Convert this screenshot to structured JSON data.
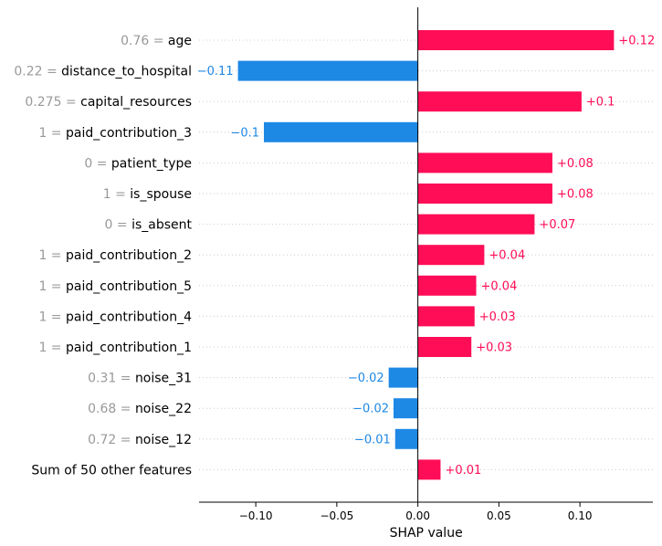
{
  "chart_data": {
    "type": "bar",
    "orientation": "horizontal",
    "xlabel": "SHAP value",
    "xlim": [
      -0.135,
      0.145
    ],
    "xticks": [
      -0.1,
      -0.05,
      0.0,
      0.05,
      0.1
    ],
    "xtick_labels": [
      "−0.10",
      "−0.05",
      "0.00",
      "0.05",
      "0.10"
    ],
    "grid": false,
    "colors": {
      "positive": "#ff0d57",
      "negative": "#1e88e5",
      "value_label": "#999999",
      "axis": "#000000",
      "gridline": "#cccccc"
    },
    "rows": [
      {
        "value_text": "0.76",
        "feature": "age",
        "shap": 0.121,
        "label": "+0.12"
      },
      {
        "value_text": "0.22",
        "feature": "distance_to_hospital",
        "shap": -0.111,
        "label": "−0.11"
      },
      {
        "value_text": "0.275",
        "feature": "capital_resources",
        "shap": 0.101,
        "label": "+0.1"
      },
      {
        "value_text": "1",
        "feature": "paid_contribution_3",
        "shap": -0.095,
        "label": "−0.1"
      },
      {
        "value_text": "0",
        "feature": "patient_type",
        "shap": 0.083,
        "label": "+0.08"
      },
      {
        "value_text": "1",
        "feature": "is_spouse",
        "shap": 0.083,
        "label": "+0.08"
      },
      {
        "value_text": "0",
        "feature": "is_absent",
        "shap": 0.072,
        "label": "+0.07"
      },
      {
        "value_text": "1",
        "feature": "paid_contribution_2",
        "shap": 0.041,
        "label": "+0.04"
      },
      {
        "value_text": "1",
        "feature": "paid_contribution_5",
        "shap": 0.036,
        "label": "+0.04"
      },
      {
        "value_text": "1",
        "feature": "paid_contribution_4",
        "shap": 0.035,
        "label": "+0.03"
      },
      {
        "value_text": "1",
        "feature": "paid_contribution_1",
        "shap": 0.033,
        "label": "+0.03"
      },
      {
        "value_text": "0.31",
        "feature": "noise_31",
        "shap": -0.018,
        "label": "−0.02"
      },
      {
        "value_text": "0.68",
        "feature": "noise_22",
        "shap": -0.015,
        "label": "−0.02"
      },
      {
        "value_text": "0.72",
        "feature": "noise_12",
        "shap": -0.014,
        "label": "−0.01"
      },
      {
        "value_text": "",
        "feature": "Sum of 50 other features",
        "shap": 0.014,
        "label": "+0.01"
      }
    ]
  }
}
